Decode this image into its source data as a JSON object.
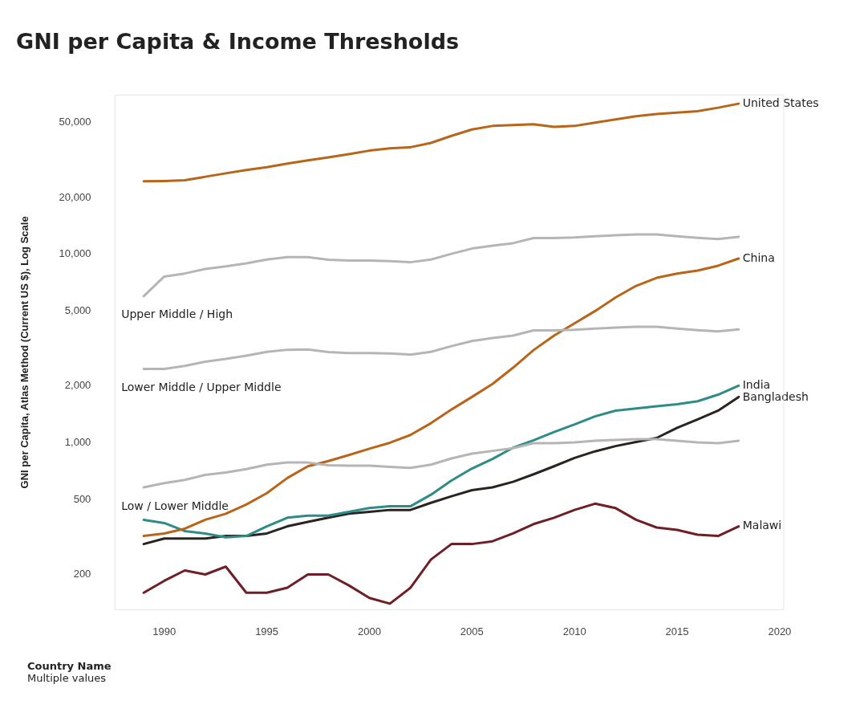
{
  "chart_data": {
    "type": "line",
    "title": "GNI per Capita & Income Thresholds",
    "ylabel": "GNI per Capita, Atlas Method (Current US $), Log Scale",
    "log": true,
    "grid": false,
    "legend": false,
    "marker": "none",
    "line_style": "solid",
    "x": [
      1989,
      1990,
      1991,
      1992,
      1993,
      1994,
      1995,
      1996,
      1997,
      1998,
      1999,
      2000,
      2001,
      2002,
      2003,
      2004,
      2005,
      2006,
      2007,
      2008,
      2009,
      2010,
      2011,
      2012,
      2013,
      2014,
      2015,
      2016,
      2017,
      2018
    ],
    "xlim": [
      1987.6,
      2020.2
    ],
    "xticks": [
      1990,
      1995,
      2000,
      2005,
      2010,
      2015,
      2020
    ],
    "ylim": [
      130,
      70000
    ],
    "yticks": [
      200,
      500,
      {
        "value": 1000,
        "label": "1,000"
      },
      {
        "value": 2000,
        "label": "2,000"
      },
      {
        "value": 5000,
        "label": "5,000"
      },
      {
        "value": 10000,
        "label": "10,000"
      },
      {
        "value": 20000,
        "label": "20,000"
      },
      {
        "value": 50000,
        "label": "50,000"
      }
    ],
    "series": [
      {
        "color": "#b5b5b5",
        "values": [
          6000,
          7620,
          7910,
          8355,
          8625,
          8955,
          9385,
          9655,
          9655,
          9360,
          9265,
          9265,
          9205,
          9075,
          9385,
          10065,
          10725,
          11115,
          11455,
          12195,
          12195,
          12275,
          12475,
          12615,
          12745,
          12735,
          12475,
          12235,
          12055,
          12375
        ]
      },
      {
        "color": "#b5b5b5",
        "values": [
          2465,
          2465,
          2555,
          2695,
          2785,
          2895,
          3035,
          3115,
          3125,
          3030,
          2995,
          2995,
          2975,
          2935,
          3035,
          3255,
          3465,
          3595,
          3705,
          3945,
          3945,
          3975,
          4035,
          4085,
          4125,
          4125,
          4035,
          3955,
          3895,
          3995
        ]
      },
      {
        "color": "#b5b5b5",
        "values": [
          580,
          610,
          635,
          675,
          695,
          725,
          765,
          785,
          785,
          760,
          755,
          755,
          745,
          735,
          765,
          825,
          875,
          905,
          935,
          995,
          995,
          1005,
          1025,
          1035,
          1045,
          1045,
          1025,
          1005,
          995,
          1025
        ]
      },
      {
        "name": "United States",
        "color": "#b8651a",
        "values": [
          24400,
          24500,
          24700,
          25800,
          26900,
          28000,
          29000,
          30300,
          31500,
          32700,
          34000,
          35500,
          36500,
          37000,
          39000,
          42500,
          46000,
          48000,
          48500,
          49000,
          47500,
          48000,
          50000,
          52000,
          54000,
          55500,
          56500,
          57500,
          60000,
          63000
        ]
      },
      {
        "name": "China",
        "color": "#b8651a",
        "values": [
          320,
          330,
          350,
          390,
          420,
          470,
          540,
          650,
          750,
          800,
          860,
          930,
          1000,
          1100,
          1270,
          1500,
          1750,
          2050,
          2500,
          3100,
          3700,
          4300,
          5000,
          5900,
          6800,
          7500,
          7900,
          8200,
          8700,
          9500
        ]
      },
      {
        "name": "India",
        "color": "#2e8b88",
        "values": [
          390,
          375,
          340,
          330,
          315,
          320,
          360,
          400,
          410,
          410,
          430,
          450,
          460,
          460,
          530,
          630,
          730,
          820,
          940,
          1030,
          1140,
          1250,
          1380,
          1480,
          1520,
          1560,
          1600,
          1660,
          1800,
          2010
        ]
      },
      {
        "name": "Bangladesh",
        "color": "#2a2420",
        "values": [
          290,
          310,
          310,
          310,
          320,
          320,
          330,
          360,
          380,
          400,
          420,
          430,
          440,
          440,
          480,
          520,
          560,
          580,
          620,
          680,
          750,
          830,
          900,
          960,
          1010,
          1060,
          1200,
          1330,
          1480,
          1750
        ]
      },
      {
        "name": "Malawi",
        "color": "#6e1f25",
        "values": [
          160,
          185,
          210,
          200,
          220,
          160,
          160,
          170,
          200,
          200,
          175,
          150,
          140,
          170,
          240,
          290,
          290,
          300,
          330,
          370,
          400,
          440,
          475,
          450,
          390,
          355,
          345,
          325,
          320,
          360
        ]
      }
    ],
    "annotations": [
      "Upper Middle / High",
      "Lower Middle / Upper Middle",
      "Low / Lower Middle",
      "Country Name",
      "Multiple values"
    ]
  }
}
